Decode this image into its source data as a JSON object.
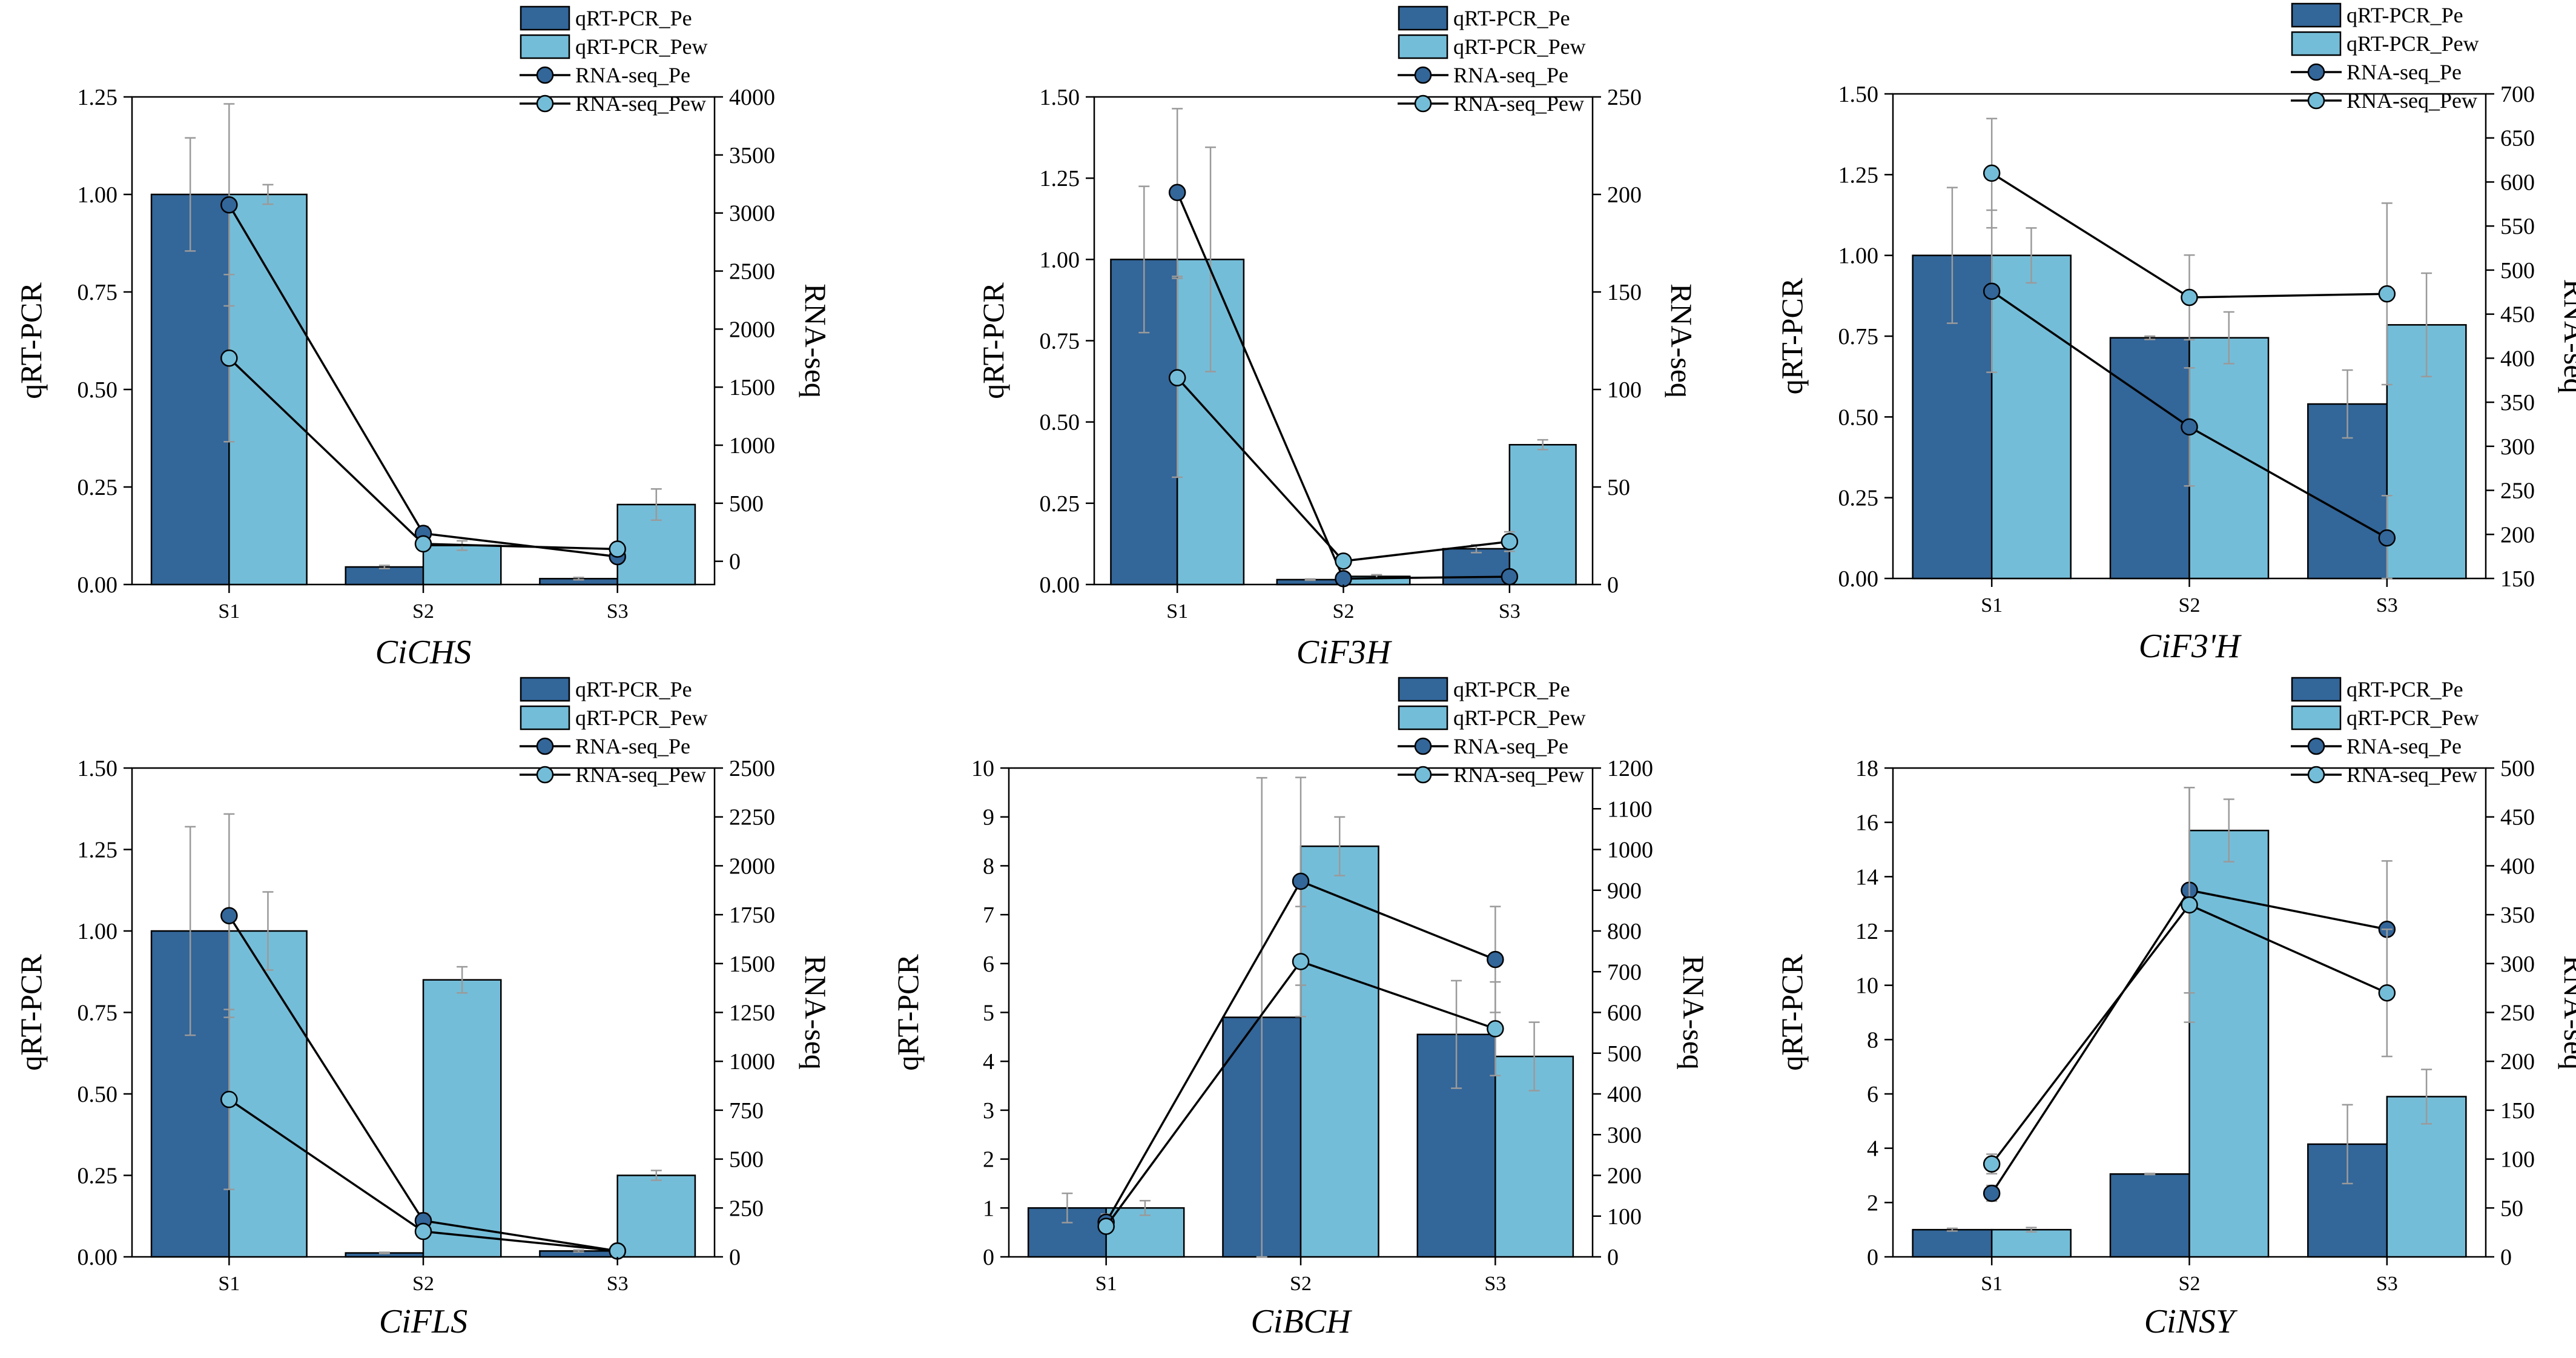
{
  "colors": {
    "pe": "#336699",
    "pew": "#74BDD8",
    "line": "#000000",
    "errorbar": "#9a9a9a",
    "axis": "#000000"
  },
  "chart_data": [
    {
      "type": "bar",
      "gene": "CiCHS",
      "categories": [
        "S1",
        "S2",
        "S3"
      ],
      "ylabel": "qRT-PCR",
      "y2label": "RNA-seq",
      "ylim": [
        0,
        1.25
      ],
      "yticks": [
        "0.00",
        "0.25",
        "0.50",
        "0.75",
        "1.00",
        "1.25"
      ],
      "y2lim": [
        -200,
        4000
      ],
      "y2ticks": [
        "0",
        "500",
        "1000",
        "1500",
        "2000",
        "2500",
        "3000",
        "3500",
        "4000"
      ],
      "legend": [
        "qRT-PCR_Pe",
        "qRT-PCR_Pew",
        "RNA-seq_Pe",
        "RNA-seq_Pew"
      ],
      "series": [
        {
          "name": "qRT-PCR_Pe",
          "kind": "bar",
          "values": [
            1.0,
            0.045,
            0.015
          ],
          "errors": [
            0.145,
            0.004,
            0.003
          ]
        },
        {
          "name": "qRT-PCR_Pew",
          "kind": "bar",
          "values": [
            1.0,
            0.1,
            0.205
          ],
          "errors": [
            0.025,
            0.012,
            0.04
          ]
        },
        {
          "name": "RNA-seq_Pe",
          "kind": "line",
          "values": [
            3070,
            240,
            40
          ],
          "errors": [
            870,
            60,
            40
          ]
        },
        {
          "name": "RNA-seq_Pew",
          "kind": "line",
          "values": [
            1750,
            150,
            105
          ],
          "errors": [
            720,
            40,
            20
          ]
        }
      ]
    },
    {
      "type": "bar",
      "gene": "CiF3H",
      "categories": [
        "S1",
        "S2",
        "S3"
      ],
      "ylabel": "qRT-PCR",
      "y2label": "RNA-seq",
      "ylim": [
        0,
        1.5
      ],
      "yticks": [
        "0.00",
        "0.25",
        "0.50",
        "0.75",
        "1.00",
        "1.25",
        "1.50"
      ],
      "y2lim": [
        0,
        250
      ],
      "y2ticks": [
        "0",
        "50",
        "100",
        "150",
        "200",
        "250"
      ],
      "legend": [
        "qRT-PCR_Pe",
        "qRT-PCR_Pew",
        "RNA-seq_Pe",
        "RNA-seq_Pew"
      ],
      "series": [
        {
          "name": "qRT-PCR_Pe",
          "kind": "bar",
          "values": [
            1.0,
            0.015,
            0.11
          ],
          "errors": [
            0.225,
            0.002,
            0.012
          ]
        },
        {
          "name": "qRT-PCR_Pew",
          "kind": "bar",
          "values": [
            1.0,
            0.025,
            0.43
          ],
          "errors": [
            0.345,
            0.005,
            0.015
          ]
        },
        {
          "name": "RNA-seq_Pe",
          "kind": "line",
          "values": [
            201,
            3,
            4
          ],
          "errors": [
            43,
            1,
            2
          ]
        },
        {
          "name": "RNA-seq_Pew",
          "kind": "line",
          "values": [
            106,
            12,
            22
          ],
          "errors": [
            51,
            3,
            5
          ]
        }
      ]
    },
    {
      "type": "bar",
      "gene": "CiF3'H",
      "categories": [
        "S1",
        "S2",
        "S3"
      ],
      "ylabel": "qRT-PCR",
      "y2label": "RNA-seq",
      "ylim": [
        0,
        1.5
      ],
      "yticks": [
        "0.00",
        "0.25",
        "0.50",
        "0.75",
        "1.00",
        "1.25",
        "1.50"
      ],
      "y2lim": [
        150,
        700
      ],
      "y2ticks": [
        "150",
        "200",
        "250",
        "300",
        "350",
        "400",
        "450",
        "500",
        "550",
        "600",
        "650",
        "700"
      ],
      "legend": [
        "qRT-PCR_Pe",
        "qRT-PCR_Pew",
        "RNA-seq_Pe",
        "RNA-seq_Pew"
      ],
      "series": [
        {
          "name": "qRT-PCR_Pe",
          "kind": "bar",
          "values": [
            1.0,
            0.745,
            0.54
          ],
          "errors": [
            0.21,
            0.005,
            0.105
          ]
        },
        {
          "name": "qRT-PCR_Pew",
          "kind": "bar",
          "values": [
            1.0,
            0.745,
            0.785
          ],
          "errors": [
            0.085,
            0.08,
            0.16
          ]
        },
        {
          "name": "RNA-seq_Pe",
          "kind": "line",
          "values": [
            476,
            322,
            196
          ],
          "errors": [
            92,
            67,
            48
          ]
        },
        {
          "name": "RNA-seq_Pew",
          "kind": "line",
          "values": [
            610,
            469,
            473
          ],
          "errors": [
            62,
            48,
            103
          ]
        }
      ]
    },
    {
      "type": "bar",
      "gene": "CiFLS",
      "categories": [
        "S1",
        "S2",
        "S3"
      ],
      "ylabel": "qRT-PCR",
      "y2label": "RNA-seq",
      "ylim": [
        0,
        1.5
      ],
      "yticks": [
        "0.00",
        "0.25",
        "0.50",
        "0.75",
        "1.00",
        "1.25",
        "1.50"
      ],
      "y2lim": [
        0,
        2500
      ],
      "y2ticks": [
        "0",
        "250",
        "500",
        "750",
        "1000",
        "1250",
        "1500",
        "1750",
        "2000",
        "2250",
        "2500"
      ],
      "legend": [
        "qRT-PCR_Pe",
        "qRT-PCR_Pew",
        "RNA-seq_Pe",
        "RNA-seq_Pew"
      ],
      "series": [
        {
          "name": "qRT-PCR_Pe",
          "kind": "bar",
          "values": [
            1.0,
            0.012,
            0.018
          ],
          "errors": [
            0.32,
            0.002,
            0.003
          ]
        },
        {
          "name": "qRT-PCR_Pew",
          "kind": "bar",
          "values": [
            1.0,
            0.85,
            0.25
          ],
          "errors": [
            0.12,
            0.04,
            0.015
          ]
        },
        {
          "name": "RNA-seq_Pe",
          "kind": "line",
          "values": [
            1745,
            185,
            30
          ],
          "errors": [
            520,
            40,
            10
          ]
        },
        {
          "name": "RNA-seq_Pew",
          "kind": "line",
          "values": [
            805,
            130,
            30
          ],
          "errors": [
            460,
            30,
            8
          ]
        }
      ]
    },
    {
      "type": "bar",
      "gene": "CiBCH",
      "categories": [
        "S1",
        "S2",
        "S3"
      ],
      "ylabel": "qRT-PCR",
      "y2label": "RNA-seq",
      "ylim": [
        0,
        10
      ],
      "yticks": [
        "0",
        "1",
        "2",
        "3",
        "4",
        "5",
        "6",
        "7",
        "8",
        "9",
        "10"
      ],
      "y2lim": [
        0,
        1200
      ],
      "y2ticks": [
        "0",
        "100",
        "200",
        "300",
        "400",
        "500",
        "600",
        "700",
        "800",
        "900",
        "1000",
        "1100",
        "1200"
      ],
      "legend": [
        "qRT-PCR_Pe",
        "qRT-PCR_Pew",
        "RNA-seq_Pe",
        "RNA-seq_Pew"
      ],
      "series": [
        {
          "name": "qRT-PCR_Pe",
          "kind": "bar",
          "values": [
            1.0,
            4.9,
            4.55
          ],
          "errors": [
            0.3,
            4.9,
            1.1
          ]
        },
        {
          "name": "qRT-PCR_Pew",
          "kind": "bar",
          "values": [
            1.0,
            8.4,
            4.1
          ],
          "errors": [
            0.15,
            0.6,
            0.7
          ]
        },
        {
          "name": "RNA-seq_Pe",
          "kind": "line",
          "values": [
            85,
            922,
            730
          ],
          "errors": [
            20,
            255,
            130
          ]
        },
        {
          "name": "RNA-seq_Pew",
          "kind": "line",
          "values": [
            75,
            725,
            560
          ],
          "errors": [
            15,
            135,
            115
          ]
        }
      ]
    },
    {
      "type": "bar",
      "gene": "CiNSY",
      "categories": [
        "S1",
        "S2",
        "S3"
      ],
      "ylabel": "qRT-PCR",
      "y2label": "RNA-seq",
      "ylim": [
        0,
        18
      ],
      "yticks": [
        "0",
        "2",
        "4",
        "6",
        "8",
        "10",
        "12",
        "14",
        "16",
        "18"
      ],
      "y2lim": [
        0,
        500
      ],
      "y2ticks": [
        "0",
        "50",
        "100",
        "150",
        "200",
        "250",
        "300",
        "350",
        "400",
        "450",
        "500"
      ],
      "legend": [
        "qRT-PCR_Pe",
        "qRT-PCR_Pew",
        "RNA-seq_Pe",
        "RNA-seq_Pew"
      ],
      "series": [
        {
          "name": "qRT-PCR_Pe",
          "kind": "bar",
          "values": [
            1.0,
            3.05,
            4.15
          ],
          "errors": [
            0.05,
            0.02,
            1.45
          ]
        },
        {
          "name": "qRT-PCR_Pew",
          "kind": "bar",
          "values": [
            1.0,
            15.7,
            5.9
          ],
          "errors": [
            0.08,
            1.15,
            1.0
          ]
        },
        {
          "name": "RNA-seq_Pe",
          "kind": "line",
          "values": [
            65,
            375,
            335
          ],
          "errors": [
            8,
            105,
            70
          ]
        },
        {
          "name": "RNA-seq_Pew",
          "kind": "line",
          "values": [
            95,
            360,
            270
          ],
          "errors": [
            10,
            120,
            65
          ]
        }
      ]
    }
  ]
}
